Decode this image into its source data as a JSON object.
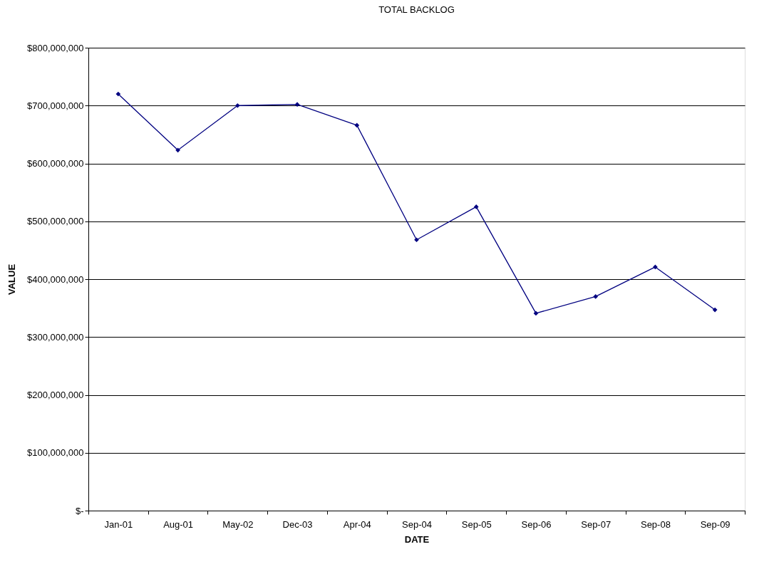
{
  "chart_data": {
    "type": "line",
    "title": "TOTAL BACKLOG",
    "xlabel": "DATE",
    "ylabel": "VALUE",
    "categories": [
      "Jan-01",
      "Aug-01",
      "May-02",
      "Dec-03",
      "Apr-04",
      "Sep-04",
      "Sep-05",
      "Sep-06",
      "Sep-07",
      "Sep-08",
      "Sep-09"
    ],
    "series": [
      {
        "color": "#000080",
        "values": [
          720000000,
          623000000,
          700000000,
          702000000,
          666000000,
          468000000,
          525000000,
          341000000,
          370000000,
          421000000,
          347000000
        ]
      }
    ],
    "ylim": [
      0,
      800000000
    ],
    "yticks": [
      {
        "value": 0,
        "label": "$-"
      },
      {
        "value": 100000000,
        "label": "$100,000,000"
      },
      {
        "value": 200000000,
        "label": "$200,000,000"
      },
      {
        "value": 300000000,
        "label": "$300,000,000"
      },
      {
        "value": 400000000,
        "label": "$400,000,000"
      },
      {
        "value": 500000000,
        "label": "$500,000,000"
      },
      {
        "value": 600000000,
        "label": "$600,000,000"
      },
      {
        "value": 700000000,
        "label": "$700,000,000"
      },
      {
        "value": 800000000,
        "label": "$800,000,000"
      }
    ],
    "grid": "y",
    "marker": "diamond",
    "line_style": "solid"
  }
}
